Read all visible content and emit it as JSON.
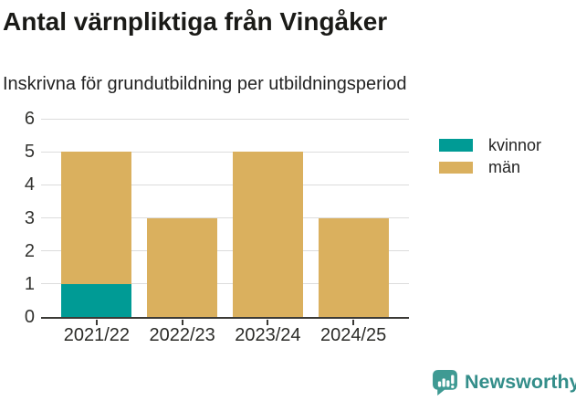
{
  "chart_data": {
    "type": "bar",
    "stacked": true,
    "title": "Antal värnpliktiga från Vingåker",
    "subtitle": "Inskrivna för grundutbildning per utbildningsperiod",
    "categories": [
      "2021/22",
      "2022/23",
      "2023/24",
      "2024/25"
    ],
    "series": [
      {
        "name": "kvinnor",
        "color": "#009b95",
        "values": [
          1,
          0,
          0,
          0
        ]
      },
      {
        "name": "män",
        "color": "#dab05e",
        "values": [
          4,
          3,
          5,
          3
        ]
      }
    ],
    "stack_totals": [
      5,
      3,
      5,
      3
    ],
    "xlabel": "",
    "ylabel": "",
    "ylim": [
      0,
      6
    ],
    "yticks": [
      0,
      1,
      2,
      3,
      4,
      5,
      6
    ],
    "grid": true,
    "legend_position": "right"
  },
  "footer": {
    "brand": "Newsworthy"
  },
  "colors": {
    "axis": "#3b3a36",
    "gridline": "#dcdcdc",
    "brand_teal": "#3f9a93"
  }
}
